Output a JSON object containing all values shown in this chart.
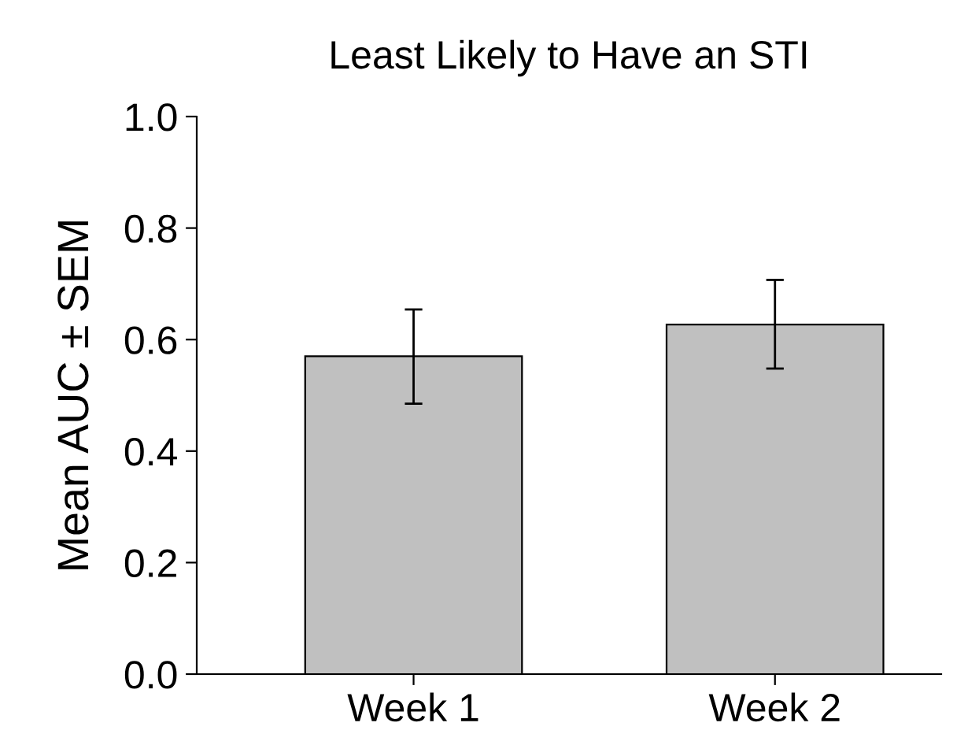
{
  "chart_data": {
    "type": "bar",
    "title": "Least Likely to Have an STI",
    "ylabel": "Mean AUC ± SEM",
    "categories": [
      "Week 1",
      "Week 2"
    ],
    "values": [
      0.57,
      0.627
    ],
    "errors": [
      [
        0.485,
        0.654
      ],
      [
        0.548,
        0.707
      ]
    ],
    "color": "#c0c0c0",
    "ylim": [
      0,
      1.0
    ],
    "yticks": [
      {
        "value": 0,
        "label": "0.0"
      },
      0.2,
      0.4,
      0.6,
      0.8,
      {
        "value": 1.0,
        "label": "1.0"
      }
    ],
    "grid": false,
    "legend": false
  }
}
